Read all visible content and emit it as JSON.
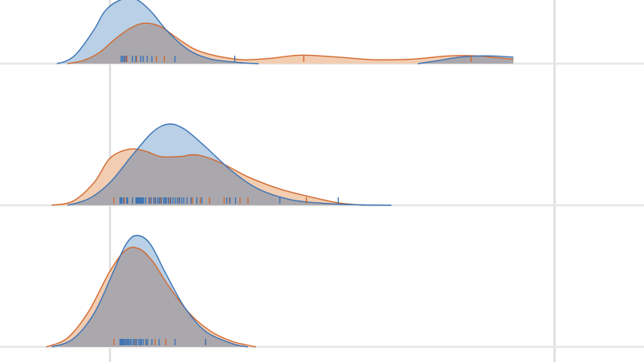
{
  "colors": {
    "series_a_line": "#3b73b6",
    "series_a_fill": "#b9d0e6",
    "series_b_line": "#d2692f",
    "series_b_fill": "#f2cdb1",
    "overlap_fill": "#aaa8ad",
    "gridline": "#dddddd",
    "baseline": "#e6e6e6"
  },
  "chart_data": [
    {
      "type": "area",
      "subtype": "kde-ridgeline-with-rug",
      "panel": 1,
      "grid": true,
      "series": [
        {
          "rug": [
            0.42,
            0.47,
            0.53,
            0.6,
            0.85,
            0.97,
            1.16,
            1.25,
            1.4,
            1.58,
            2.45,
            4.7
          ],
          "kde": [
            [
              -2.0,
              0
            ],
            [
              -1.6,
              0.05
            ],
            [
              -1.2,
              0.18
            ],
            [
              -0.6,
              0.52
            ],
            [
              -0.2,
              0.8
            ],
            [
              0.3,
              0.96
            ],
            [
              0.9,
              1.0
            ],
            [
              1.5,
              0.82
            ],
            [
              2.2,
              0.48
            ],
            [
              3.0,
              0.2
            ],
            [
              3.8,
              0.07
            ],
            [
              4.8,
              0.02
            ],
            [
              5.6,
              0.0
            ]
          ],
          "kde2": [
            [
              11.6,
              0
            ],
            [
              12.4,
              0.05
            ],
            [
              13.2,
              0.1
            ],
            [
              14.2,
              0.12
            ],
            [
              15.2,
              0.1
            ]
          ]
        },
        {
          "rug": [
            0.55,
            0.64,
            1.0,
            1.75,
            2.05,
            7.3,
            13.6
          ],
          "kde": [
            [
              -1.6,
              0
            ],
            [
              -1.0,
              0.05
            ],
            [
              -0.4,
              0.17
            ],
            [
              0.2,
              0.38
            ],
            [
              0.8,
              0.55
            ],
            [
              1.3,
              0.62
            ],
            [
              1.9,
              0.57
            ],
            [
              2.5,
              0.4
            ],
            [
              3.2,
              0.22
            ],
            [
              4.0,
              0.12
            ],
            [
              5.0,
              0.06
            ],
            [
              6.0,
              0.08
            ],
            [
              7.2,
              0.13
            ],
            [
              8.6,
              0.1
            ],
            [
              10.0,
              0.06
            ],
            [
              11.4,
              0.07
            ],
            [
              12.8,
              0.12
            ],
            [
              13.8,
              0.12
            ],
            [
              14.6,
              0.09
            ],
            [
              15.2,
              0.07
            ]
          ]
        }
      ]
    },
    {
      "type": "area",
      "subtype": "kde-ridgeline-with-rug",
      "panel": 2,
      "grid": true,
      "series": [
        {
          "rug": [
            0.38,
            0.4,
            0.44,
            0.5,
            0.63,
            0.67,
            0.85,
            0.98,
            1.02,
            1.06,
            1.1,
            1.14,
            1.18,
            1.22,
            1.26,
            1.34,
            1.47,
            1.55,
            1.65,
            1.72,
            1.8,
            1.86,
            1.94,
            2.03,
            2.08,
            2.12,
            2.2,
            2.29,
            2.37,
            2.46,
            2.54,
            2.62,
            2.7,
            2.78,
            2.9,
            3.05,
            3.27,
            3.46,
            4.4,
            4.52,
            4.73,
            6.4,
            8.6
          ],
          "kde": [
            [
              -1.6,
              0
            ],
            [
              -0.8,
              0.08
            ],
            [
              0.0,
              0.28
            ],
            [
              0.8,
              0.6
            ],
            [
              1.6,
              0.9
            ],
            [
              2.2,
              1.0
            ],
            [
              2.8,
              0.94
            ],
            [
              3.6,
              0.72
            ],
            [
              4.6,
              0.42
            ],
            [
              5.6,
              0.2
            ],
            [
              6.8,
              0.07
            ],
            [
              8.0,
              0.025
            ],
            [
              9.5,
              0.005
            ],
            [
              10.6,
              0.0
            ]
          ]
        },
        {
          "rug": [
            0.15,
            0.4,
            0.55,
            0.85,
            1.0,
            1.25,
            1.5,
            1.7,
            1.9,
            2.25,
            2.6,
            3.1,
            3.4,
            3.75,
            4.3,
            4.5,
            4.9,
            5.2,
            7.4
          ],
          "kde": [
            [
              -2.2,
              0
            ],
            [
              -1.4,
              0.05
            ],
            [
              -0.6,
              0.28
            ],
            [
              0.0,
              0.58
            ],
            [
              0.7,
              0.69
            ],
            [
              1.3,
              0.67
            ],
            [
              1.9,
              0.6
            ],
            [
              2.6,
              0.6
            ],
            [
              3.3,
              0.62
            ],
            [
              4.2,
              0.52
            ],
            [
              5.2,
              0.35
            ],
            [
              6.4,
              0.2
            ],
            [
              7.6,
              0.1
            ],
            [
              8.6,
              0.03
            ],
            [
              9.6,
              0.0
            ]
          ]
        }
      ]
    },
    {
      "type": "area",
      "subtype": "kde-ridgeline-with-rug",
      "panel": 3,
      "grid": true,
      "series": [
        {
          "rug": [
            0.38,
            0.42,
            0.46,
            0.5,
            0.55,
            0.6,
            0.65,
            0.7,
            0.75,
            0.8,
            0.88,
            0.93,
            1.0,
            1.08,
            1.14,
            1.18,
            1.25,
            1.36,
            1.42,
            1.58,
            1.85,
            2.45,
            3.6
          ],
          "kde": [
            [
              -2.2,
              0
            ],
            [
              -1.4,
              0.07
            ],
            [
              -0.6,
              0.3
            ],
            [
              0.1,
              0.66
            ],
            [
              0.6,
              0.92
            ],
            [
              1.0,
              1.0
            ],
            [
              1.5,
              0.93
            ],
            [
              2.1,
              0.66
            ],
            [
              2.8,
              0.36
            ],
            [
              3.6,
              0.14
            ],
            [
              4.6,
              0.03
            ],
            [
              5.2,
              0.0
            ]
          ]
        },
        {
          "rug": [
            0.15,
            0.55,
            0.65,
            0.95,
            1.35,
            1.7,
            2.1,
            3.6
          ],
          "kde": [
            [
              -2.4,
              0
            ],
            [
              -1.6,
              0.08
            ],
            [
              -0.8,
              0.32
            ],
            [
              0.0,
              0.68
            ],
            [
              0.6,
              0.87
            ],
            [
              1.1,
              0.88
            ],
            [
              1.6,
              0.77
            ],
            [
              2.2,
              0.55
            ],
            [
              3.0,
              0.3
            ],
            [
              3.8,
              0.14
            ],
            [
              4.6,
              0.05
            ],
            [
              5.5,
              0.0
            ]
          ]
        }
      ]
    }
  ]
}
